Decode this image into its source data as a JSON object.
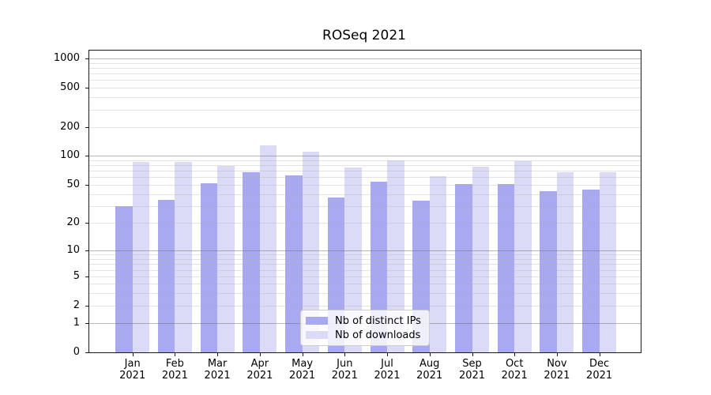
{
  "chart_data": {
    "type": "bar",
    "title": "ROSeq 2021",
    "x_months": [
      "Jan",
      "Feb",
      "Mar",
      "Apr",
      "May",
      "Jun",
      "Jul",
      "Aug",
      "Sep",
      "Oct",
      "Nov",
      "Dec"
    ],
    "x_year": "2021",
    "series": [
      {
        "name": "Nb of distinct IPs",
        "color": "#a9a9f2",
        "values": [
          30,
          35,
          52,
          68,
          63,
          37,
          54,
          34,
          51,
          51,
          43,
          45
        ]
      },
      {
        "name": "Nb of downloads",
        "color": "#dbdbf8",
        "values": [
          86,
          86,
          79,
          129,
          110,
          75,
          90,
          61,
          77,
          87,
          67,
          67
        ]
      }
    ],
    "yscale": "symlog",
    "yticks": [
      0,
      1,
      2,
      5,
      10,
      20,
      50,
      100,
      200,
      500,
      1000
    ],
    "ylim": [
      0,
      1200
    ],
    "grid": {
      "major": true,
      "minor": true
    },
    "legend": {
      "position": "lower center",
      "items": [
        "Nb of distinct IPs",
        "Nb of downloads"
      ]
    }
  },
  "colors": {
    "axis": "#1a1a1a",
    "grid_major": "#b0b0b0",
    "grid_minor": "#e2e2e2",
    "legend_border": "#cccccc",
    "background": "#ffffff"
  }
}
